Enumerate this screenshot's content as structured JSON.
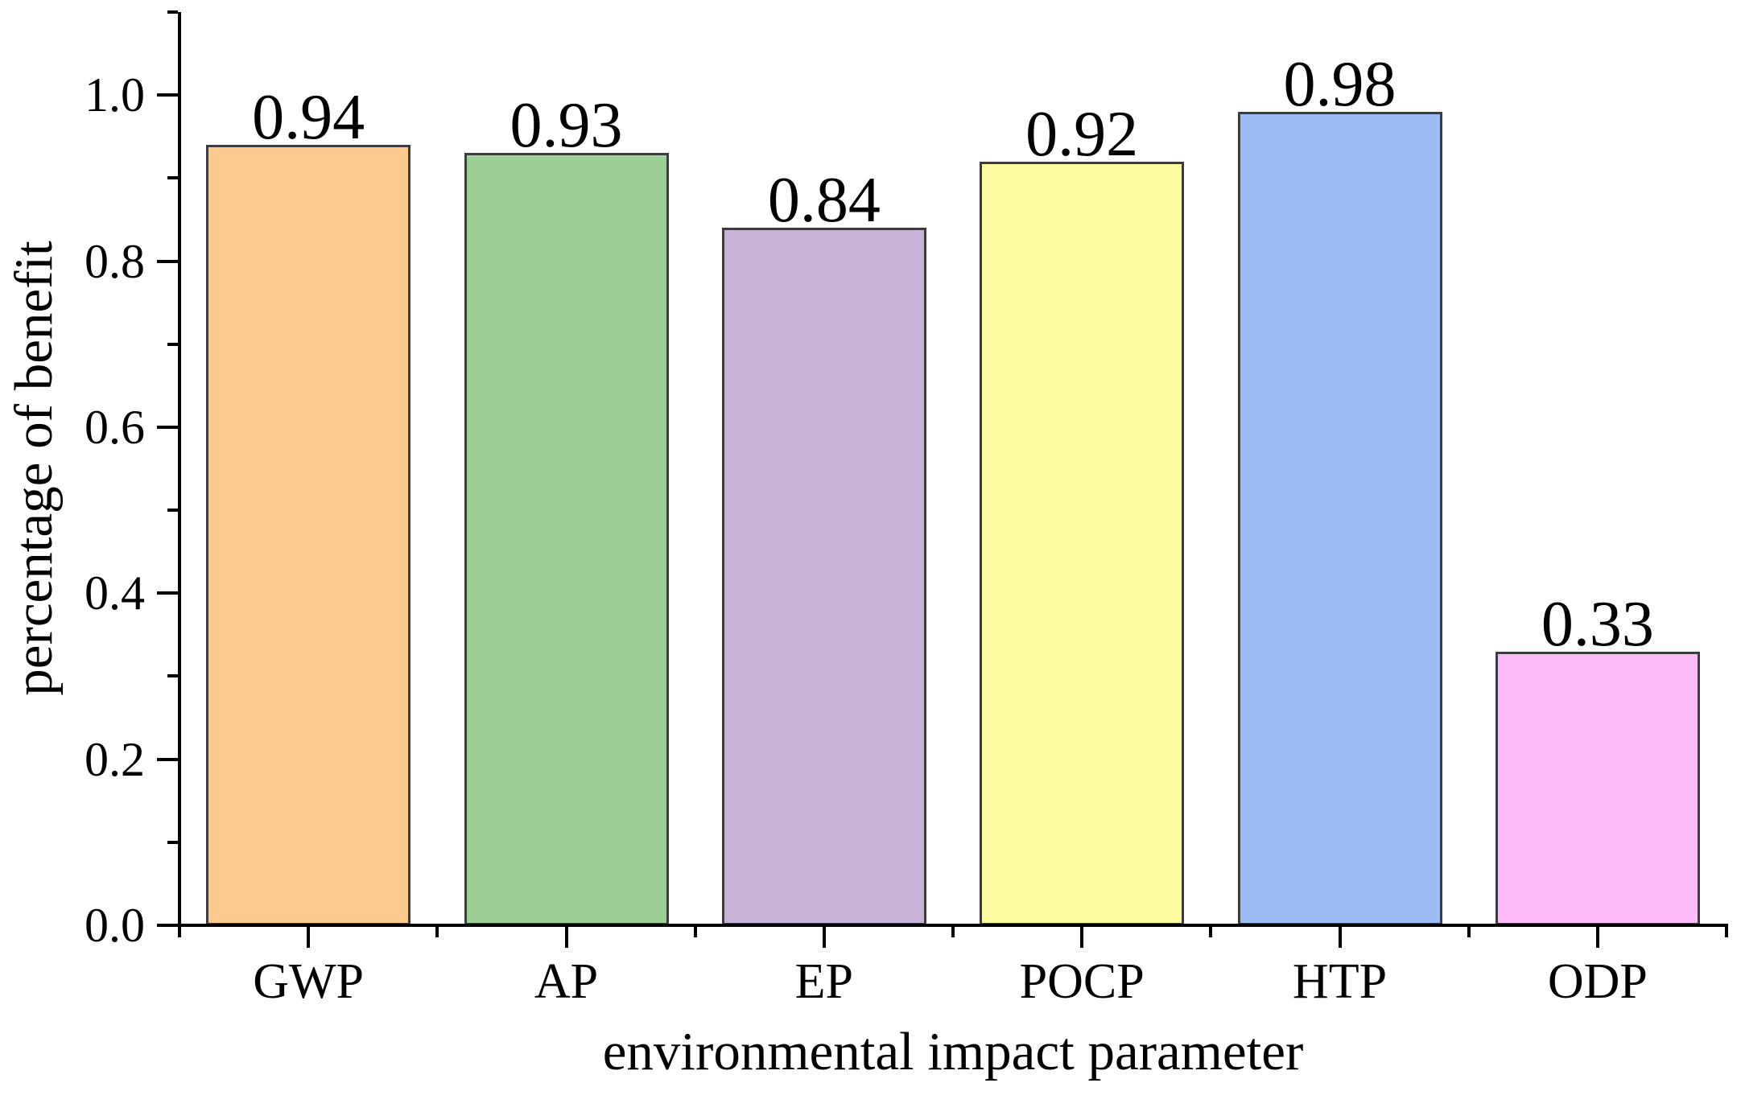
{
  "figure": {
    "background": "#ffffff",
    "axis_color": "#000000"
  },
  "chart_data": {
    "type": "bar",
    "title": "",
    "xlabel": "environmental impact parameter",
    "ylabel": "percentage of benefit",
    "categories": [
      "GWP",
      "AP",
      "EP",
      "POCP",
      "HTP",
      "ODP"
    ],
    "values": [
      0.94,
      0.93,
      0.84,
      0.92,
      0.98,
      0.33
    ],
    "bar_labels": [
      "0.94",
      "0.93",
      "0.84",
      "0.92",
      "0.98",
      "0.33"
    ],
    "bar_colors": [
      "#fcc98e",
      "#9dd097",
      "#c7b3d6",
      "#fdfda4",
      "#9cbdf4",
      "#febcfb"
    ],
    "bar_border_color": "#3d3d3d",
    "ylim": [
      0,
      1.1
    ],
    "ytick_values": [
      0.0,
      0.2,
      0.4,
      0.6,
      0.8,
      1.0
    ],
    "ytick_labels": [
      "0.0",
      "0.2",
      "0.4",
      "0.6",
      "0.8",
      "1.0"
    ],
    "yminor_values": [
      0.1,
      0.3,
      0.5,
      0.7,
      0.9,
      1.1
    ],
    "grid": false,
    "legend": null,
    "bar_label_position": "above-bar"
  }
}
